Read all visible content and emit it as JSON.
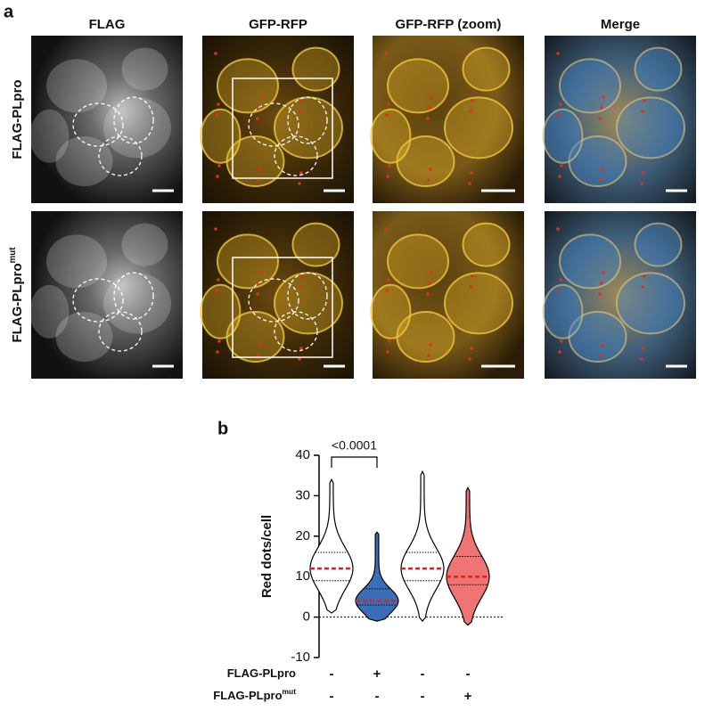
{
  "panel_a": {
    "label": "a",
    "columns": [
      "FLAG",
      "GFP-RFP",
      "GFP-RFP (zoom)",
      "Merge"
    ],
    "rows": [
      {
        "label": "FLAG-PLpro"
      },
      {
        "label": "FLAG-PLpro",
        "superscript": "mut"
      }
    ]
  },
  "chart_data": {
    "type": "violin",
    "panel_label": "b",
    "ylabel": "Red dots/cell",
    "ylim": [
      -10,
      40
    ],
    "yticks": [
      -10,
      0,
      10,
      20,
      30,
      40
    ],
    "annotation": "<0.0001",
    "groups": [
      {
        "color": "#ffffff",
        "min": 1,
        "q1": 9,
        "median": 12,
        "q3": 16,
        "max": 34
      },
      {
        "color": "#3a6fb8",
        "min": -1,
        "q1": 3,
        "median": 4,
        "q3": 7,
        "max": 21
      },
      {
        "color": "#ffffff",
        "min": -1,
        "q1": 9,
        "median": 12,
        "q3": 16,
        "max": 36
      },
      {
        "color": "#f07474",
        "min": -2,
        "q1": 8,
        "median": 10,
        "q3": 15,
        "max": 32
      }
    ],
    "median_color": "#e0201c",
    "conditions": [
      {
        "label": "FLAG-PLpro",
        "signs": [
          "-",
          "+",
          "-",
          "-"
        ]
      },
      {
        "label": "FLAG-PLpro",
        "superscript": "mut",
        "signs": [
          "-",
          "-",
          "-",
          "+"
        ]
      }
    ]
  }
}
